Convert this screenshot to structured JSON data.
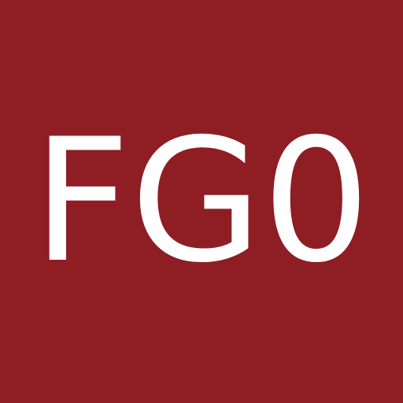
{
  "tile": {
    "text": "FG0",
    "background_color": "#8e1e24",
    "text_color": "#ffffff"
  }
}
